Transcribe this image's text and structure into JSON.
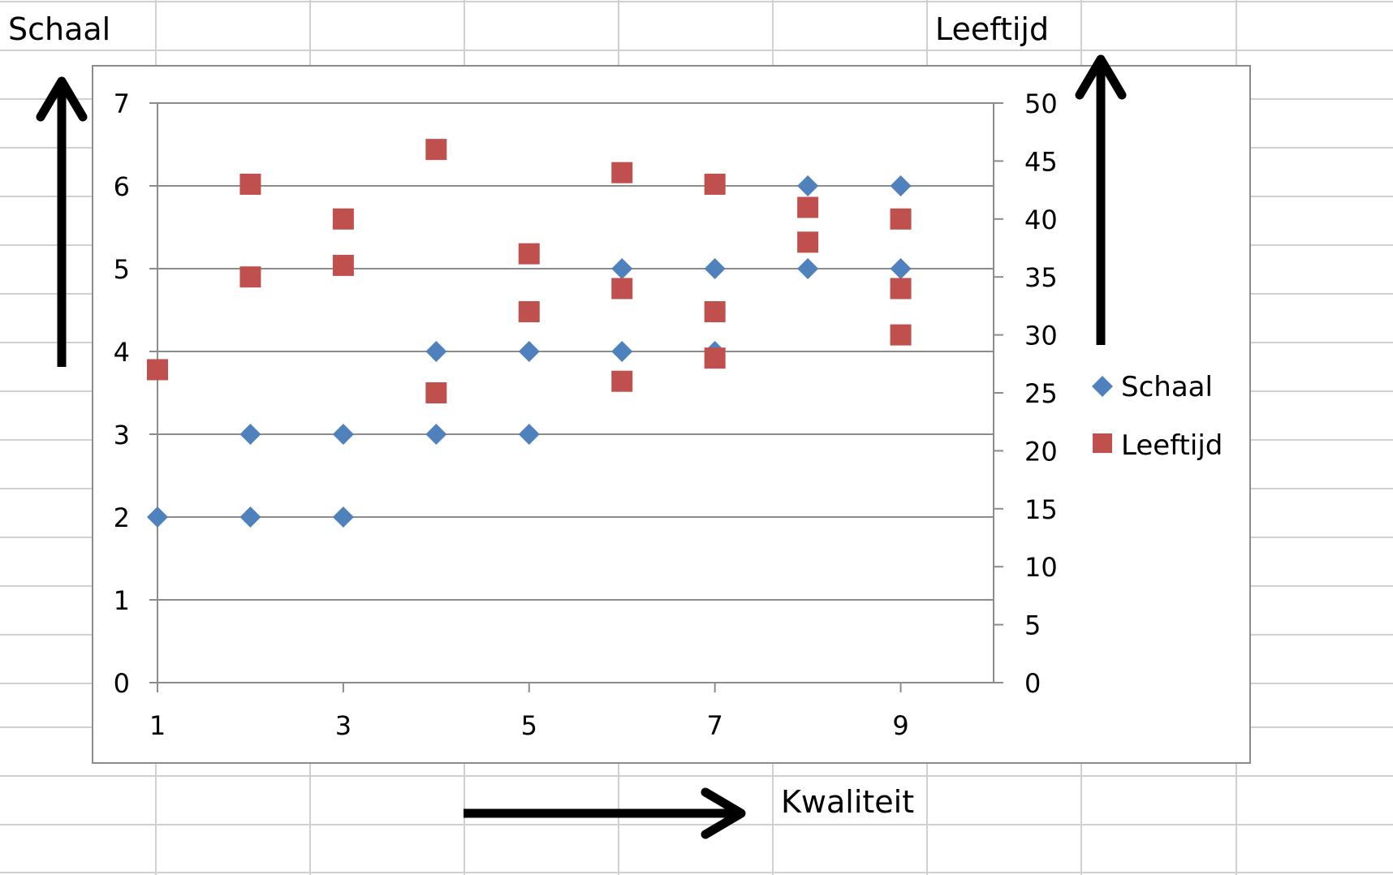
{
  "sheet_labels": {
    "left_axis": "Schaal",
    "right_axis": "Leeftijd",
    "x_axis": "Kwaliteit"
  },
  "colors": {
    "schaal": "#4f81bd",
    "leeftijd": "#c0504d",
    "gridline": "#8c8c8c",
    "sheet_grid": "#d0d0d0",
    "arrow": "#000000"
  },
  "chart_data": {
    "type": "scatter",
    "xlabel": "Kwaliteit",
    "ylabel": "Schaal",
    "y2label": "Leeftijd",
    "xlim": [
      1,
      10
    ],
    "ylim": [
      0,
      7
    ],
    "y2lim": [
      0,
      50
    ],
    "x_ticks": [
      "1",
      "3",
      "5",
      "7",
      "9"
    ],
    "y_ticks": [
      "0",
      "1",
      "2",
      "3",
      "4",
      "5",
      "6",
      "7"
    ],
    "y2_ticks": [
      "0",
      "5",
      "10",
      "15",
      "20",
      "25",
      "30",
      "35",
      "40",
      "45",
      "50"
    ],
    "grid": true,
    "legend_position": "right",
    "series": [
      {
        "name": "Schaal",
        "axis": "left",
        "marker": "diamond",
        "points": [
          [
            1,
            2
          ],
          [
            2,
            2
          ],
          [
            3,
            2
          ],
          [
            2,
            3
          ],
          [
            3,
            3
          ],
          [
            4,
            3
          ],
          [
            5,
            3
          ],
          [
            4,
            4
          ],
          [
            5,
            4
          ],
          [
            6,
            4
          ],
          [
            7,
            4
          ],
          [
            6,
            5
          ],
          [
            7,
            5
          ],
          [
            8,
            5
          ],
          [
            9,
            5
          ],
          [
            8,
            6
          ],
          [
            9,
            6
          ]
        ]
      },
      {
        "name": "Leeftijd",
        "axis": "right",
        "marker": "square",
        "points": [
          [
            1,
            27
          ],
          [
            2,
            43
          ],
          [
            2,
            35
          ],
          [
            3,
            40
          ],
          [
            3,
            36
          ],
          [
            4,
            46
          ],
          [
            4,
            25
          ],
          [
            5,
            37
          ],
          [
            5,
            32
          ],
          [
            6,
            44
          ],
          [
            6,
            34
          ],
          [
            6,
            26
          ],
          [
            7,
            43
          ],
          [
            7,
            32
          ],
          [
            7,
            28
          ],
          [
            8,
            41
          ],
          [
            8,
            38
          ],
          [
            9,
            40
          ],
          [
            9,
            34
          ],
          [
            9,
            30
          ]
        ]
      }
    ]
  }
}
